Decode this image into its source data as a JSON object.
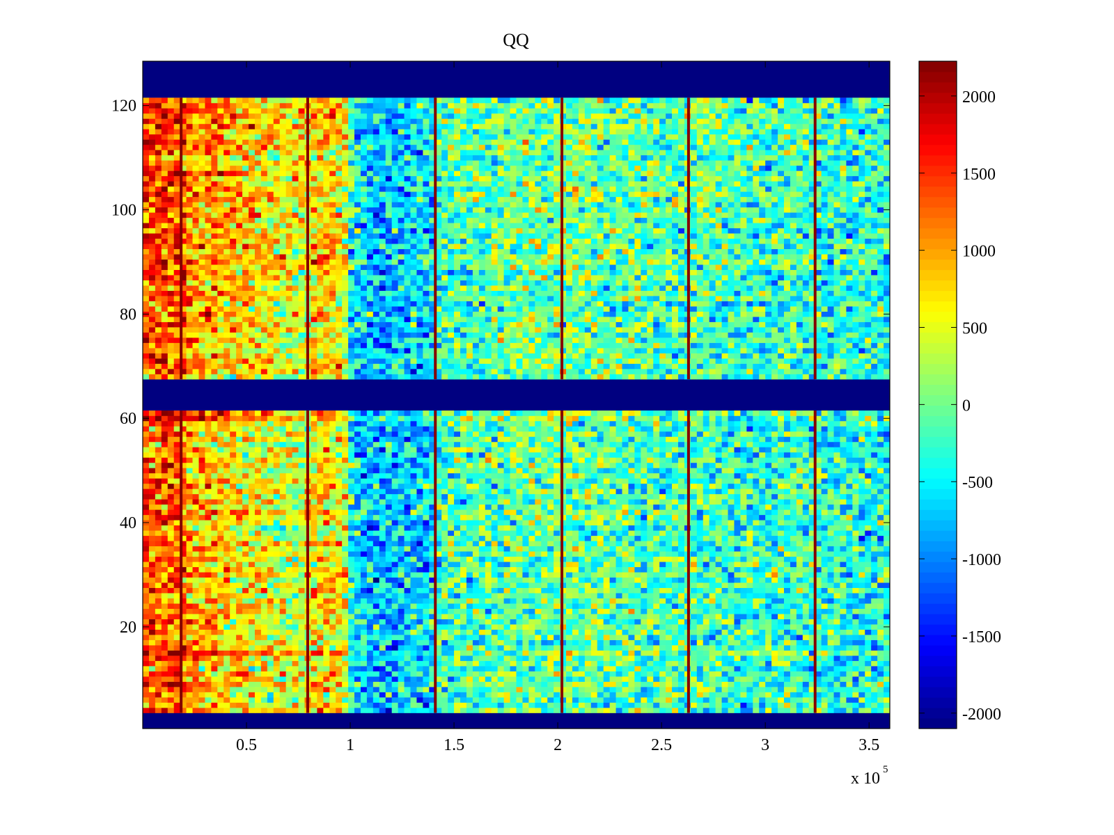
{
  "chart_data": {
    "type": "heatmap",
    "title": "QQ",
    "xlabel": "",
    "ylabel": "",
    "x_exponent_label": "x 10",
    "x_exponent_power": "5",
    "xlim": [
      0,
      360000
    ],
    "ylim": [
      0.5,
      128.5
    ],
    "x_ticks": [
      50000,
      100000,
      150000,
      200000,
      250000,
      300000,
      350000
    ],
    "x_tick_labels": [
      "0.5",
      "1",
      "1.5",
      "2",
      "2.5",
      "3",
      "3.5"
    ],
    "y_ticks": [
      20,
      40,
      60,
      80,
      100,
      120
    ],
    "y_tick_labels": [
      "20",
      "40",
      "60",
      "80",
      "100",
      "120"
    ],
    "colormap": "jet",
    "clim": [
      -2100,
      2225
    ],
    "colorbar": {
      "placement": "right",
      "ticks": [
        2000,
        1500,
        1000,
        500,
        0,
        -500,
        -1000,
        -1500,
        -2000
      ],
      "tick_labels": [
        "2000",
        "1500",
        "1000",
        "500",
        "0",
        "-500",
        "-1000",
        "-1500",
        "-2000"
      ]
    },
    "rows": 128,
    "column_bin_width": 20000,
    "column_mean_profile": [
      1300,
      900,
      650,
      400,
      700,
      -800,
      -650,
      -200,
      -100,
      -50,
      0,
      -100,
      -200,
      -150,
      -300,
      -250,
      -350,
      -350
    ],
    "empty_row_ranges": [
      [
        1,
        3
      ],
      [
        62,
        67
      ],
      [
        122,
        128
      ]
    ],
    "empty_value": -2100,
    "vertical_lines": [
      18500,
      79500,
      141000,
      202000,
      263000,
      324000
    ],
    "vertical_line_value": 2200,
    "row_anomalies": [
      {
        "row": 15,
        "offset": 700
      },
      {
        "row": 60,
        "offset": 600
      },
      {
        "row": 61,
        "offset": 700
      },
      {
        "row": 39,
        "offset": -400
      }
    ],
    "upper_block_row_trend": 300,
    "noise_std": 450
  }
}
